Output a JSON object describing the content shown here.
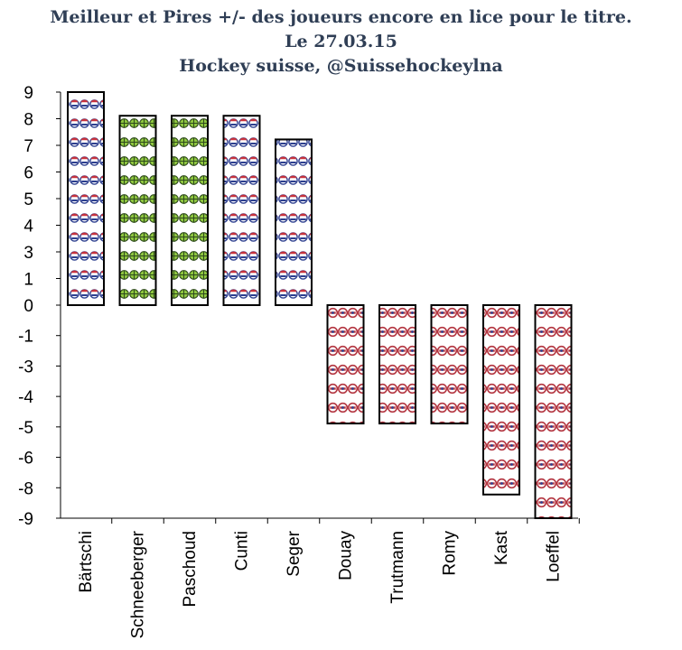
{
  "title": {
    "line1": "Meilleur et Pires +/- des joueurs encore en lice pour le titre.",
    "line2": "Le 27.03.15",
    "line3": "Hockey suisse, @Suissehockeylna"
  },
  "chart_data": {
    "type": "bar",
    "title": "Meilleur et Pires +/- des joueurs encore en lice pour le titre. Le 27.03.15 Hockey suisse, @Suissehockeylna",
    "categories": [
      "Bärtschi",
      "Schneeberger",
      "Paschoud",
      "Cunti",
      "Seger",
      "Douay",
      "Trutmann",
      "Romy",
      "Kast",
      "Loeffel"
    ],
    "values": [
      9,
      8,
      8,
      8,
      7,
      -5,
      -5,
      -5,
      -8,
      -9
    ],
    "bar_patterns": [
      "blue-logo",
      "green-logo",
      "green-logo",
      "blue-logo",
      "blue-logo",
      "red-logo",
      "red-logo",
      "red-logo",
      "red-logo",
      "red-logo"
    ],
    "y_tick_labels": [
      "9",
      "8",
      "7",
      "6",
      "5",
      "4",
      "3",
      "1",
      "0",
      "-1",
      "-3",
      "-4",
      "-5",
      "-6",
      "-8",
      "-9"
    ],
    "ylim": [
      -9,
      9
    ],
    "xlabel": "",
    "ylabel": "",
    "grid": false,
    "legend": "none",
    "colors": {
      "blue-logo": "#3a4f9a",
      "green-logo": "#8ec63f",
      "red-logo": "#b3343f",
      "bar_border": "#000000",
      "title": "#2f3e55"
    }
  }
}
